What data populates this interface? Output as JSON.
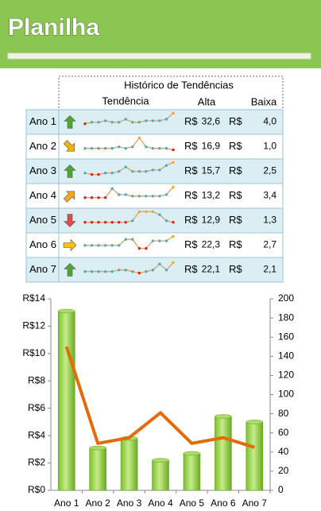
{
  "header": {
    "title": "Planilha"
  },
  "table": {
    "title": "Histórico de Tendências",
    "columns": [
      "Tendência",
      "Alta",
      "Baixa"
    ],
    "currency": "R$",
    "rows": [
      {
        "label": "Ano 1",
        "arrow": "up",
        "arrow_color": "#4ea72e",
        "sparkline": [
          2,
          3,
          3,
          4,
          3,
          3,
          5,
          3,
          3,
          4,
          4,
          4,
          5,
          9
        ],
        "alta": "32,6",
        "baixa": "4,0"
      },
      {
        "label": "Ano 2",
        "arrow": "down-right",
        "arrow_color": "#f5b400",
        "sparkline": [
          2,
          2,
          2,
          2,
          2,
          3,
          2,
          3,
          9,
          3,
          2,
          2,
          2,
          1
        ],
        "alta": "16,9",
        "baixa": "1,0"
      },
      {
        "label": "Ano 3",
        "arrow": "up",
        "arrow_color": "#4ea72e",
        "sparkline": [
          2,
          1,
          1,
          2,
          2,
          3,
          6,
          3,
          3,
          3,
          4,
          4,
          7,
          9
        ],
        "alta": "15,7",
        "baixa": "2,5"
      },
      {
        "label": "Ano 4",
        "arrow": "up-right",
        "arrow_color": "#f5a623",
        "sparkline": [
          2,
          2,
          2,
          2,
          8,
          4,
          4,
          3,
          3,
          3,
          3,
          3,
          4,
          9
        ],
        "alta": "13,2",
        "baixa": "3,4"
      },
      {
        "label": "Ano 5",
        "arrow": "down",
        "arrow_color": "#e04b4b",
        "sparkline": [
          2,
          2,
          2,
          2,
          2,
          2,
          2,
          3,
          9,
          9,
          9,
          7,
          3,
          2
        ],
        "alta": "12,9",
        "baixa": "1,3"
      },
      {
        "label": "Ano 6",
        "arrow": "right",
        "arrow_color": "#f5c400",
        "sparkline": [
          3,
          3,
          3,
          3,
          3,
          3,
          7,
          7,
          1,
          1,
          6,
          6,
          6,
          9
        ],
        "alta": "22,3",
        "baixa": "2,7"
      },
      {
        "label": "Ano 7",
        "arrow": "up",
        "arrow_color": "#4ea72e",
        "sparkline": [
          2,
          2,
          2,
          2,
          2,
          3,
          3,
          2,
          1,
          2,
          3,
          7,
          3,
          8
        ],
        "alta": "22,1",
        "baixa": "2,1"
      }
    ]
  },
  "chart_data": {
    "type": "combo",
    "categories": [
      "Ano 1",
      "Ano 2",
      "Ano 3",
      "Ano 4",
      "Ano 5",
      "Ano 6",
      "Ano 7"
    ],
    "series": [
      {
        "type": "bar",
        "color": "#92d050",
        "values": [
          13.1,
          3.1,
          3.8,
          2.2,
          2.7,
          5.4,
          5.0
        ]
      },
      {
        "type": "line",
        "axis": "y2",
        "color": "#e36c09",
        "values": [
          150,
          49,
          55,
          81,
          49,
          55,
          45
        ]
      }
    ],
    "ylim": [
      0,
      14
    ],
    "yticks": [
      {
        "value": 0,
        "label": "R$0"
      },
      {
        "value": 2,
        "label": "R$2"
      },
      {
        "value": 4,
        "label": "R$4"
      },
      {
        "value": 6,
        "label": "R$6"
      },
      {
        "value": 8,
        "label": "R$8"
      },
      {
        "value": 10,
        "label": "R$10"
      },
      {
        "value": 12,
        "label": "R$12"
      },
      {
        "value": 14,
        "label": "R$14"
      }
    ],
    "y2lim": [
      0,
      200
    ],
    "y2ticks": [
      0,
      20,
      40,
      60,
      80,
      100,
      120,
      140,
      160,
      180,
      200
    ]
  }
}
